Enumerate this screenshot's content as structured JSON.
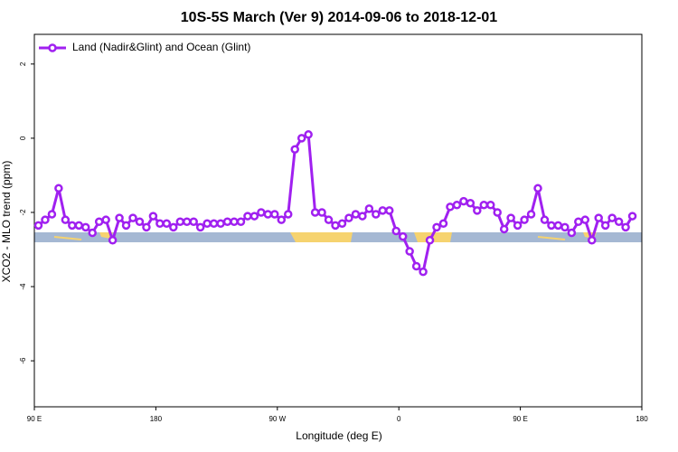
{
  "chart_data": {
    "type": "line",
    "title": "10S-5S March (Ver 9)   2014-09-06 to 2018-12-01",
    "x_label": "Longitude (deg E)",
    "y_label": "XCO2 - MLO trend (ppm)",
    "xlim": [
      90,
      540
    ],
    "ylim": [
      -7.24,
      2.8
    ],
    "xticks": [
      {
        "value": 90,
        "label": "90 E"
      },
      180,
      {
        "value": 270,
        "label": "90 W"
      },
      {
        "value": 360,
        "label": "0"
      },
      {
        "value": 450,
        "label": "90 E"
      },
      {
        "value": 540,
        "label": "180"
      }
    ],
    "yticks": [
      -6,
      -4,
      -2,
      0,
      2
    ],
    "legend": "top-left",
    "x": [
      93,
      98,
      103,
      108,
      113,
      118,
      123,
      128,
      133,
      138,
      143,
      148,
      153,
      158,
      163,
      168,
      173,
      178,
      183,
      188,
      193,
      198,
      203,
      208,
      213,
      218,
      223,
      228,
      233,
      238,
      243,
      248,
      253,
      258,
      263,
      268,
      273,
      278,
      283,
      288,
      293,
      298,
      303,
      308,
      313,
      318,
      323,
      328,
      333,
      338,
      343,
      348,
      353,
      358,
      363,
      368,
      373,
      378,
      383,
      388,
      393,
      398,
      403,
      408,
      413,
      418,
      423,
      428,
      433,
      438,
      443,
      448,
      453,
      458,
      463,
      468,
      473,
      478,
      483,
      488,
      493,
      498,
      503,
      508,
      513,
      518,
      523,
      528,
      533
    ],
    "series": [
      {
        "name": "Land (Nadir&Glint) and Ocean (Glint)",
        "color": "#a020f0",
        "values": [
          -2.35,
          -2.2,
          -2.05,
          -1.35,
          -2.2,
          -2.35,
          -2.35,
          -2.4,
          -2.55,
          -2.25,
          -2.2,
          -2.75,
          -2.15,
          -2.35,
          -2.15,
          -2.25,
          -2.4,
          -2.1,
          -2.3,
          -2.3,
          -2.4,
          -2.25,
          -2.25,
          -2.25,
          -2.4,
          -2.3,
          -2.3,
          -2.3,
          -2.25,
          -2.25,
          -2.25,
          -2.1,
          -2.1,
          -2.0,
          -2.05,
          -2.05,
          -2.2,
          -2.05,
          -0.3,
          0.0,
          0.1,
          -2.0,
          -2.0,
          -2.2,
          -2.35,
          -2.3,
          -2.15,
          -2.05,
          -2.1,
          -1.9,
          -2.05,
          -1.95,
          -1.95,
          -2.5,
          -2.65,
          -3.05,
          -3.45,
          -3.6,
          -2.75,
          -2.4,
          -2.3,
          -1.85,
          -1.8,
          -1.7,
          -1.75,
          -1.95,
          -1.8,
          -1.8,
          -2.0,
          -2.45,
          -2.15,
          -2.35,
          -2.2,
          -2.05,
          -1.35,
          -2.2,
          -2.35,
          -2.35,
          -2.4,
          -2.55,
          -2.25,
          -2.2,
          -2.75,
          -2.15,
          -2.35,
          -2.15,
          -2.25,
          -2.4,
          -2.1
        ]
      }
    ]
  }
}
